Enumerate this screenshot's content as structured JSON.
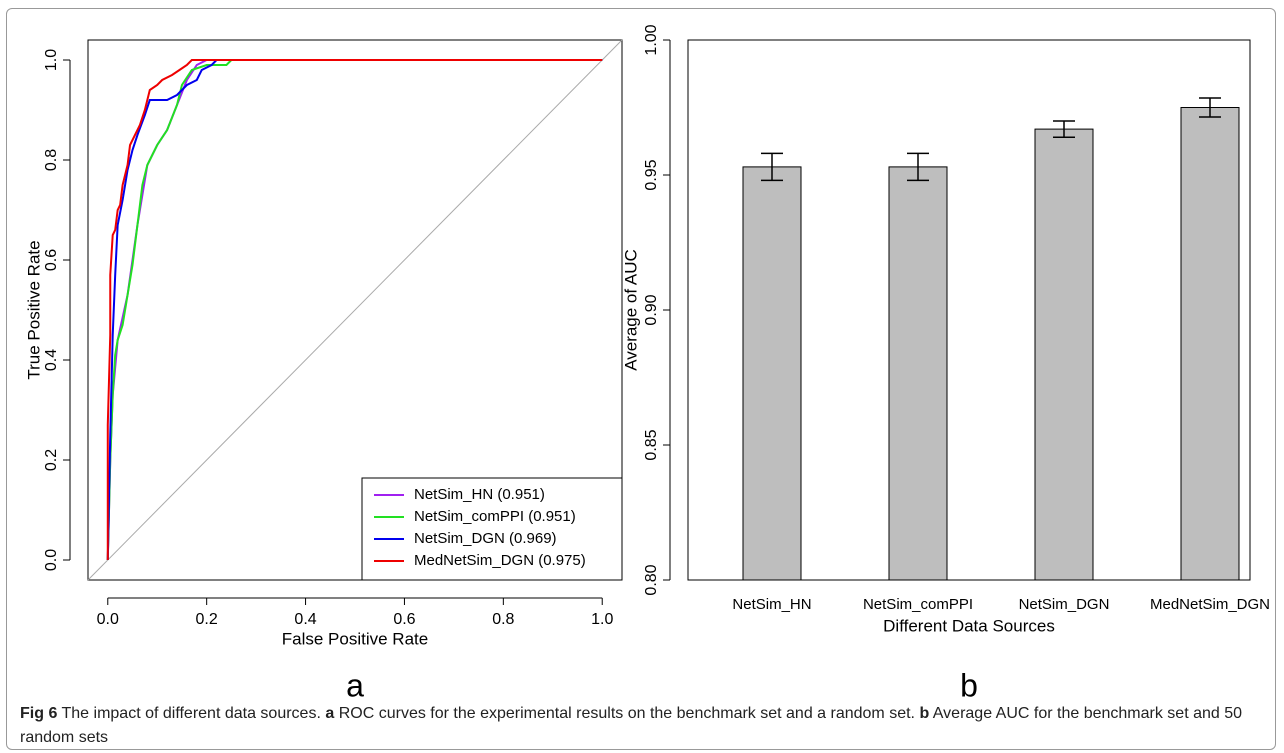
{
  "chart_data": [
    {
      "type": "roc",
      "label": "a",
      "x_label": "False Positive Rate",
      "y_label": "True Positive Rate",
      "xlim": [
        -0.04,
        1.04
      ],
      "ylim": [
        -0.04,
        1.04
      ],
      "xticks": [
        {
          "value": 0,
          "label": "0.0"
        },
        0.2,
        0.4,
        0.6,
        0.8,
        {
          "value": 1,
          "label": "1.0"
        }
      ],
      "yticks": [
        {
          "value": 0,
          "label": "0.0"
        },
        0.2,
        0.4,
        0.6,
        0.8,
        {
          "value": 1,
          "label": "1.0"
        }
      ],
      "diagonal": true,
      "legend": "bottom-right",
      "series": [
        {
          "name": "NetSim_HN (0.951)",
          "color": "#a020f0",
          "x": [
            0,
            0.005,
            0.01,
            0.02,
            0.04,
            0.06,
            0.08,
            0.1,
            0.12,
            0.14,
            0.16,
            0.18,
            0.2,
            1
          ],
          "values": [
            0,
            0.2,
            0.33,
            0.44,
            0.53,
            0.67,
            0.79,
            0.83,
            0.86,
            0.91,
            0.96,
            0.99,
            1,
            1
          ]
        },
        {
          "name": "NetSim_comPPI (0.951)",
          "color": "#22e022",
          "x": [
            0,
            0.005,
            0.01,
            0.015,
            0.02,
            0.03,
            0.04,
            0.05,
            0.06,
            0.07,
            0.08,
            0.09,
            0.1,
            0.12,
            0.14,
            0.15,
            0.17,
            0.2,
            0.24,
            0.25,
            1
          ],
          "values": [
            0,
            0.2,
            0.33,
            0.41,
            0.44,
            0.47,
            0.53,
            0.59,
            0.67,
            0.75,
            0.79,
            0.81,
            0.83,
            0.86,
            0.91,
            0.95,
            0.98,
            0.99,
            0.99,
            1,
            1
          ]
        },
        {
          "name": "NetSim_DGN (0.969)",
          "color": "#0000ee",
          "x": [
            0,
            0.005,
            0.01,
            0.015,
            0.02,
            0.03,
            0.04,
            0.05,
            0.06,
            0.075,
            0.085,
            0.12,
            0.14,
            0.16,
            0.18,
            0.19,
            0.21,
            0.22,
            1
          ],
          "values": [
            0,
            0.25,
            0.45,
            0.57,
            0.67,
            0.72,
            0.78,
            0.82,
            0.85,
            0.89,
            0.92,
            0.92,
            0.93,
            0.95,
            0.96,
            0.98,
            0.99,
            1,
            1
          ]
        },
        {
          "name": "MedNetSim_DGN (0.975)",
          "color": "#ee0000",
          "x": [
            0,
            0,
            0.005,
            0.005,
            0.01,
            0.015,
            0.02,
            0.025,
            0.03,
            0.04,
            0.045,
            0.055,
            0.065,
            0.075,
            0.085,
            0.1,
            0.11,
            0.13,
            0.145,
            0.16,
            0.17,
            1
          ],
          "values": [
            0,
            0.27,
            0.45,
            0.57,
            0.65,
            0.66,
            0.7,
            0.71,
            0.75,
            0.79,
            0.83,
            0.85,
            0.87,
            0.9,
            0.94,
            0.95,
            0.96,
            0.97,
            0.98,
            0.99,
            1,
            1
          ]
        }
      ]
    },
    {
      "type": "bar",
      "label": "b",
      "x_label": "Different Data Sources",
      "y_label": "Average of AUC",
      "categories": [
        "NetSim_HN",
        "NetSim_comPPI",
        "NetSim_DGN",
        "MedNetSim_DGN"
      ],
      "values": [
        0.953,
        0.953,
        0.967,
        0.975
      ],
      "errors": [
        0.005,
        0.005,
        0.003,
        0.0035
      ],
      "color": "#bebebe",
      "ylim": [
        0.8,
        1.0
      ],
      "yticks": [
        {
          "value": 0.8,
          "label": "0.80"
        },
        0.85,
        {
          "value": 0.9,
          "label": "0.90"
        },
        0.95,
        {
          "value": 1.0,
          "label": "1.00"
        }
      ]
    }
  ],
  "caption": {
    "figure": "Fig 6",
    "text": "The impact of different data sources.",
    "parts": [
      {
        "label": "a",
        "text": "ROC curves for the experimental results on the benchmark set and a random set."
      },
      {
        "label": "b",
        "text": "Average AUC for the benchmark set and 50 random sets"
      }
    ]
  }
}
